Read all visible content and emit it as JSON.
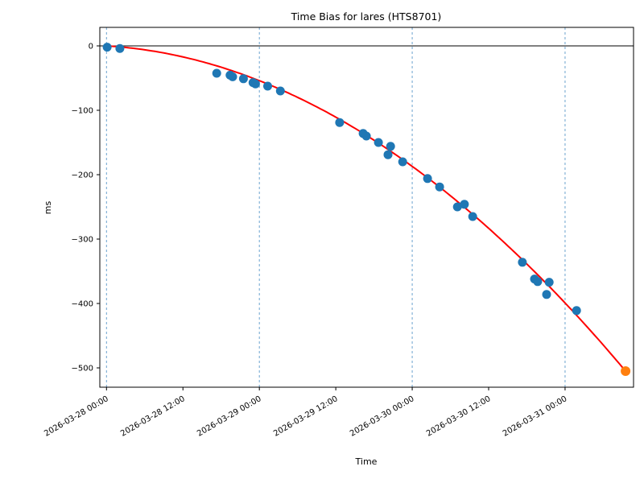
{
  "chart_data": {
    "type": "scatter",
    "title": "Time Bias for lares (HTS8701)",
    "xlabel": "Time",
    "ylabel": "ms",
    "x_unit": "hours since 2026-03-28 00:00",
    "xlim": [
      -1.05,
      82.75
    ],
    "ylim": [
      -530,
      28.75
    ],
    "grid": "vertical dashed lines at each midnight",
    "grid_color": "#6ba3cf",
    "zero_line": {
      "value": 0,
      "color": "#000000"
    },
    "x_ticks": [
      {
        "t": 0,
        "label": "2026-03-28 00:00",
        "grid": true
      },
      {
        "t": 12,
        "label": "2026-03-28 12:00",
        "grid": false
      },
      {
        "t": 24,
        "label": "2026-03-29 00:00",
        "grid": true
      },
      {
        "t": 36,
        "label": "2026-03-29 12:00",
        "grid": false
      },
      {
        "t": 48,
        "label": "2026-03-30 00:00",
        "grid": true
      },
      {
        "t": 60,
        "label": "2026-03-30 12:00",
        "grid": false
      },
      {
        "t": 72,
        "label": "2026-03-31 00:00",
        "grid": true
      }
    ],
    "y_ticks": [
      {
        "v": 0,
        "label": "0"
      },
      {
        "v": -100,
        "label": "−100"
      },
      {
        "v": -200,
        "label": "−200"
      },
      {
        "v": -300,
        "label": "−300"
      },
      {
        "v": -400,
        "label": "−400"
      },
      {
        "v": -500,
        "label": "−500"
      }
    ],
    "series": [
      {
        "name": "observed-bias",
        "color": "#1f77b4",
        "marker_radius": 5.5,
        "points": [
          [
            0.1,
            -2
          ],
          [
            2.1,
            -4
          ],
          [
            17.3,
            -42.5
          ],
          [
            19.4,
            -45.5
          ],
          [
            19.8,
            -48
          ],
          [
            21.5,
            -51
          ],
          [
            23.0,
            -57
          ],
          [
            23.4,
            -59
          ],
          [
            25.3,
            -62.5
          ],
          [
            27.3,
            -70
          ],
          [
            36.6,
            -119
          ],
          [
            40.3,
            -136
          ],
          [
            40.8,
            -140
          ],
          [
            42.7,
            -150
          ],
          [
            44.2,
            -169
          ],
          [
            44.6,
            -156
          ],
          [
            46.5,
            -180
          ],
          [
            50.4,
            -206
          ],
          [
            52.3,
            -219
          ],
          [
            55.1,
            -250
          ],
          [
            56.2,
            -246
          ],
          [
            57.5,
            -265
          ],
          [
            65.3,
            -336
          ],
          [
            67.2,
            -362
          ],
          [
            67.7,
            -366
          ],
          [
            69.1,
            -386
          ],
          [
            69.5,
            -367
          ],
          [
            73.8,
            -411
          ]
        ]
      },
      {
        "name": "latest-extrapolated-point",
        "color": "#ff7f0e",
        "marker_radius": 6,
        "points": [
          [
            81.5,
            -505
          ]
        ]
      }
    ],
    "fit_line": {
      "name": "quadratic-fit",
      "color": "#ff0000",
      "width": 2,
      "coeffs_ms": {
        "c0": 0,
        "c1": -0.605,
        "c2": -0.0686
      },
      "t_range": [
        0.1,
        81.5
      ]
    }
  }
}
